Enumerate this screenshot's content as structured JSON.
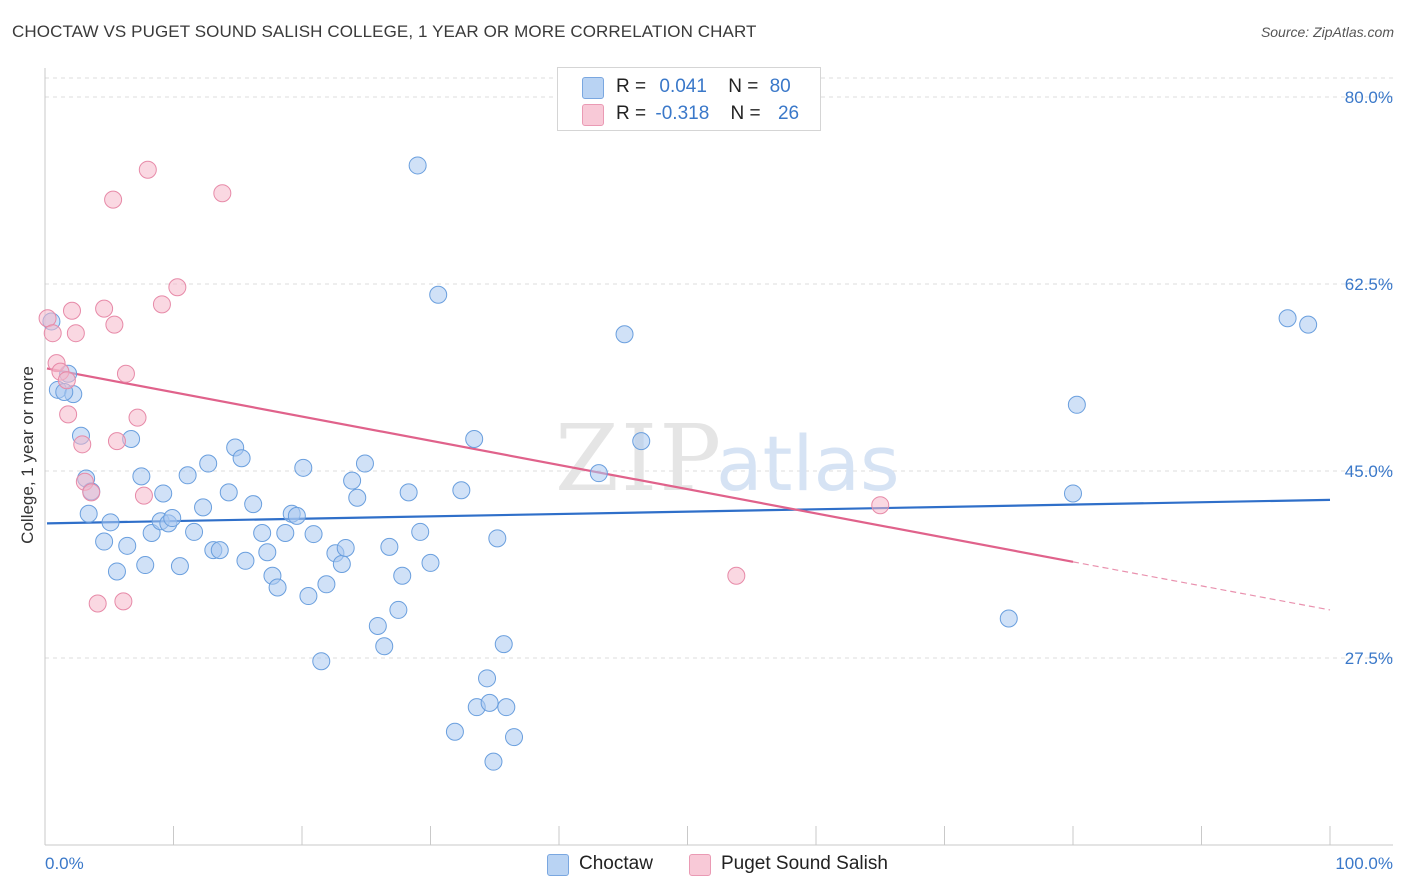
{
  "header": {
    "title": "CHOCTAW VS PUGET SOUND SALISH COLLEGE, 1 YEAR OR MORE CORRELATION CHART",
    "source": "Source: ZipAtlas.com"
  },
  "legend": {
    "rows": [
      {
        "r_label": "R =",
        "r_value": "0.041",
        "n_label": "N =",
        "n_value": "80"
      },
      {
        "r_label": "R =",
        "r_value": "-0.318",
        "n_label": "N =",
        "n_value": "26"
      }
    ]
  },
  "watermark": {
    "zip": "ZIP",
    "atlas": "atlas"
  },
  "colors": {
    "choctaw_fill": "#a9c8f0",
    "choctaw_stroke": "#6a9fde",
    "choctaw_line": "#2f6fc9",
    "salish_fill": "#f5b8cb",
    "salish_stroke": "#e78aa8",
    "salish_line": "#e0628b",
    "tick_text": "#3a78c9"
  },
  "chart_data": {
    "type": "scatter",
    "title": "CHOCTAW VS PUGET SOUND SALISH COLLEGE, 1 YEAR OR MORE CORRELATION CHART",
    "xlabel": "",
    "ylabel": "College, 1 year or more",
    "xlim": [
      0,
      100
    ],
    "ylim": [
      10,
      83
    ],
    "x_tick_labels": [
      "0.0%",
      "100.0%"
    ],
    "y_ticks": [
      27.5,
      45.0,
      62.5,
      80.0
    ],
    "y_tick_labels": [
      "27.5%",
      "45.0%",
      "62.5%",
      "80.0%"
    ],
    "grid": true,
    "legend_position": "top-center",
    "series": [
      {
        "name": "Choctaw",
        "r": 0.041,
        "n": 80,
        "trend": {
          "x": [
            0,
            100
          ],
          "y": [
            40.1,
            42.3
          ]
        },
        "points": [
          [
            0.5,
            59.0
          ],
          [
            1.0,
            52.6
          ],
          [
            1.8,
            54.1
          ],
          [
            2.2,
            52.2
          ],
          [
            2.8,
            48.3
          ],
          [
            3.2,
            44.3
          ],
          [
            3.6,
            43.1
          ],
          [
            3.4,
            41.0
          ],
          [
            4.6,
            38.4
          ],
          [
            5.1,
            40.2
          ],
          [
            5.6,
            35.6
          ],
          [
            6.4,
            38.0
          ],
          [
            6.7,
            48.0
          ],
          [
            7.5,
            44.5
          ],
          [
            7.8,
            36.2
          ],
          [
            8.3,
            39.2
          ],
          [
            9.0,
            40.3
          ],
          [
            9.2,
            42.9
          ],
          [
            9.6,
            40.1
          ],
          [
            9.9,
            40.6
          ],
          [
            10.5,
            36.1
          ],
          [
            11.1,
            44.6
          ],
          [
            11.6,
            39.3
          ],
          [
            12.3,
            41.6
          ],
          [
            12.7,
            45.7
          ],
          [
            13.1,
            37.6
          ],
          [
            13.6,
            37.6
          ],
          [
            14.3,
            43.0
          ],
          [
            14.8,
            47.2
          ],
          [
            15.3,
            46.2
          ],
          [
            15.6,
            36.6
          ],
          [
            16.2,
            41.9
          ],
          [
            16.9,
            39.2
          ],
          [
            17.3,
            37.4
          ],
          [
            17.7,
            35.2
          ],
          [
            18.1,
            34.1
          ],
          [
            18.7,
            39.2
          ],
          [
            19.2,
            41.0
          ],
          [
            19.6,
            40.8
          ],
          [
            20.1,
            45.3
          ],
          [
            20.5,
            33.3
          ],
          [
            20.9,
            39.1
          ],
          [
            21.5,
            27.2
          ],
          [
            21.9,
            34.4
          ],
          [
            22.6,
            37.3
          ],
          [
            23.1,
            36.3
          ],
          [
            23.4,
            37.8
          ],
          [
            23.9,
            44.1
          ],
          [
            24.3,
            42.5
          ],
          [
            24.9,
            45.7
          ],
          [
            25.9,
            30.5
          ],
          [
            26.4,
            28.6
          ],
          [
            26.8,
            37.9
          ],
          [
            27.5,
            32.0
          ],
          [
            27.8,
            35.2
          ],
          [
            28.3,
            43.0
          ],
          [
            29.2,
            39.3
          ],
          [
            30.0,
            36.4
          ],
          [
            29.0,
            73.6
          ],
          [
            30.6,
            61.5
          ],
          [
            31.9,
            20.6
          ],
          [
            32.4,
            43.2
          ],
          [
            33.4,
            48.0
          ],
          [
            33.6,
            22.9
          ],
          [
            34.4,
            25.6
          ],
          [
            35.2,
            38.7
          ],
          [
            35.7,
            28.8
          ],
          [
            34.9,
            17.8
          ],
          [
            34.6,
            23.3
          ],
          [
            35.9,
            22.9
          ],
          [
            36.5,
            20.1
          ],
          [
            43.1,
            44.8
          ],
          [
            45.1,
            57.8
          ],
          [
            46.4,
            47.8
          ],
          [
            75.0,
            31.2
          ],
          [
            80.0,
            42.9
          ],
          [
            80.3,
            51.2
          ],
          [
            96.7,
            59.3
          ],
          [
            98.3,
            58.7
          ],
          [
            1.5,
            52.4
          ]
        ]
      },
      {
        "name": "Puget Sound Salish",
        "r": -0.318,
        "n": 26,
        "trend": {
          "x": [
            0,
            80
          ],
          "y": [
            54.6,
            36.5
          ]
        },
        "trend_dashed": {
          "x": [
            80,
            100
          ],
          "y": [
            36.5,
            32.0
          ]
        },
        "points": [
          [
            0.2,
            59.3
          ],
          [
            0.6,
            57.9
          ],
          [
            0.9,
            55.1
          ],
          [
            1.2,
            54.3
          ],
          [
            1.7,
            53.5
          ],
          [
            1.8,
            50.3
          ],
          [
            2.1,
            60.0
          ],
          [
            2.4,
            57.9
          ],
          [
            2.9,
            47.5
          ],
          [
            3.1,
            44.0
          ],
          [
            3.6,
            43.0
          ],
          [
            4.1,
            32.6
          ],
          [
            4.6,
            60.2
          ],
          [
            5.3,
            70.4
          ],
          [
            5.4,
            58.7
          ],
          [
            5.6,
            47.8
          ],
          [
            6.1,
            32.8
          ],
          [
            6.3,
            54.1
          ],
          [
            7.2,
            50.0
          ],
          [
            7.7,
            42.7
          ],
          [
            8.0,
            73.2
          ],
          [
            9.1,
            60.6
          ],
          [
            10.3,
            62.2
          ],
          [
            13.8,
            71.0
          ],
          [
            53.8,
            35.2
          ],
          [
            65.0,
            41.8
          ]
        ]
      }
    ]
  }
}
